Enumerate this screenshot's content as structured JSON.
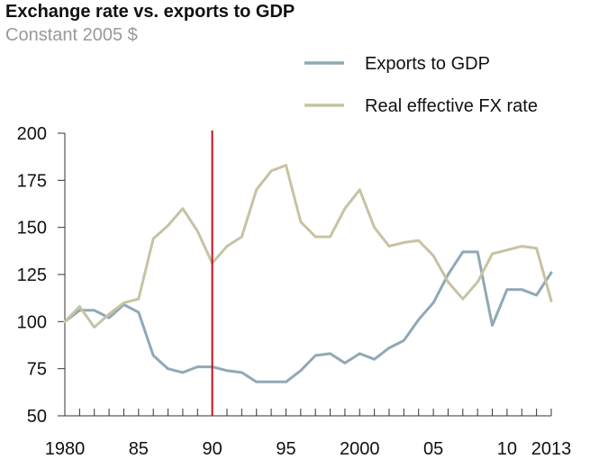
{
  "chart_data": {
    "type": "line",
    "title": "Exchange rate vs. exports to GDP",
    "subtitle": "Constant 2005 $",
    "xlabel": "",
    "ylabel": "",
    "xlim": [
      1980,
      2013
    ],
    "ylim": [
      50,
      200
    ],
    "y_ticks": [
      50,
      75,
      100,
      125,
      150,
      175,
      200
    ],
    "x_tick_labels": [
      {
        "x": 1980,
        "label": "1980"
      },
      {
        "x": 1985,
        "label": "85"
      },
      {
        "x": 1990,
        "label": "90"
      },
      {
        "x": 1995,
        "label": "95"
      },
      {
        "x": 2000,
        "label": "2000"
      },
      {
        "x": 2005,
        "label": "05"
      },
      {
        "x": 2010,
        "label": "10"
      },
      {
        "x": 2013,
        "label": "2013"
      }
    ],
    "grid": false,
    "legend_position": "top-right",
    "reference_line": {
      "x": 1990,
      "color": "#c0111b"
    },
    "series": [
      {
        "name": "Exports to GDP",
        "color": "#8fa9b5",
        "x": [
          1980,
          1981,
          1982,
          1983,
          1984,
          1985,
          1986,
          1987,
          1988,
          1989,
          1990,
          1991,
          1992,
          1993,
          1994,
          1995,
          1996,
          1997,
          1998,
          1999,
          2000,
          2001,
          2002,
          2003,
          2004,
          2005,
          2006,
          2007,
          2008,
          2009,
          2010,
          2011,
          2012,
          2013
        ],
        "values": [
          100,
          106,
          106,
          102,
          109,
          105,
          82,
          75,
          73,
          76,
          76,
          74,
          73,
          68,
          68,
          68,
          74,
          82,
          83,
          78,
          83,
          80,
          86,
          90,
          101,
          110,
          125,
          137,
          137,
          98,
          117,
          117,
          114,
          126
        ]
      },
      {
        "name": "Real effective FX rate",
        "color": "#c7c3a3",
        "x": [
          1980,
          1981,
          1982,
          1983,
          1984,
          1985,
          1986,
          1987,
          1988,
          1989,
          1990,
          1991,
          1992,
          1993,
          1994,
          1995,
          1996,
          1997,
          1998,
          1999,
          2000,
          2001,
          2002,
          2003,
          2004,
          2005,
          2006,
          2007,
          2008,
          2009,
          2010,
          2011,
          2012,
          2013
        ],
        "values": [
          100,
          108,
          97,
          104,
          110,
          112,
          144,
          151,
          160,
          148,
          131,
          140,
          145,
          170,
          180,
          183,
          153,
          145,
          145,
          160,
          170,
          150,
          140,
          142,
          143,
          135,
          121,
          112,
          121,
          136,
          138,
          140,
          139,
          111
        ]
      }
    ]
  }
}
